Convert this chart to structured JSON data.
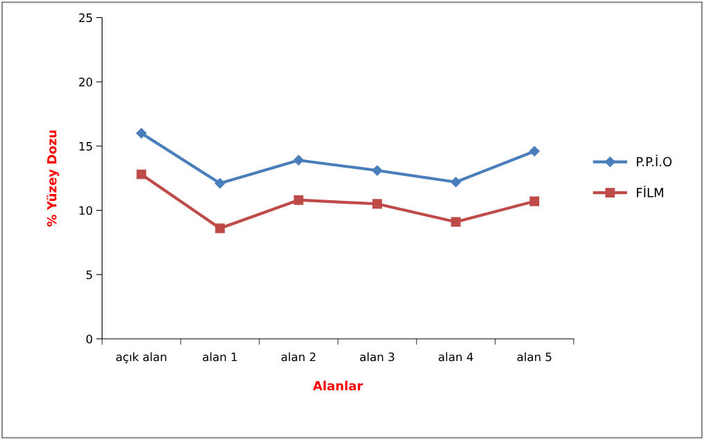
{
  "chart_data": {
    "type": "line",
    "xlabel": "Alanlar",
    "ylabel": "% Yüzey Dozu",
    "categories": [
      "açık alan",
      "alan 1",
      "alan 2",
      "alan 3",
      "alan 4",
      "alan 5"
    ],
    "series": [
      {
        "name": "P.P.İ.O",
        "color": "#4a7ebb",
        "marker": "diamond",
        "values": [
          16.0,
          12.1,
          13.9,
          13.1,
          12.2,
          14.6
        ]
      },
      {
        "name": "FİLM",
        "color": "#be4b48",
        "marker": "square",
        "values": [
          12.8,
          8.6,
          10.8,
          10.5,
          9.1,
          10.7
        ]
      }
    ],
    "ylim": [
      0,
      25
    ],
    "yticks": [
      0,
      5,
      10,
      15,
      20,
      25
    ],
    "grid": false,
    "legend": "right"
  }
}
